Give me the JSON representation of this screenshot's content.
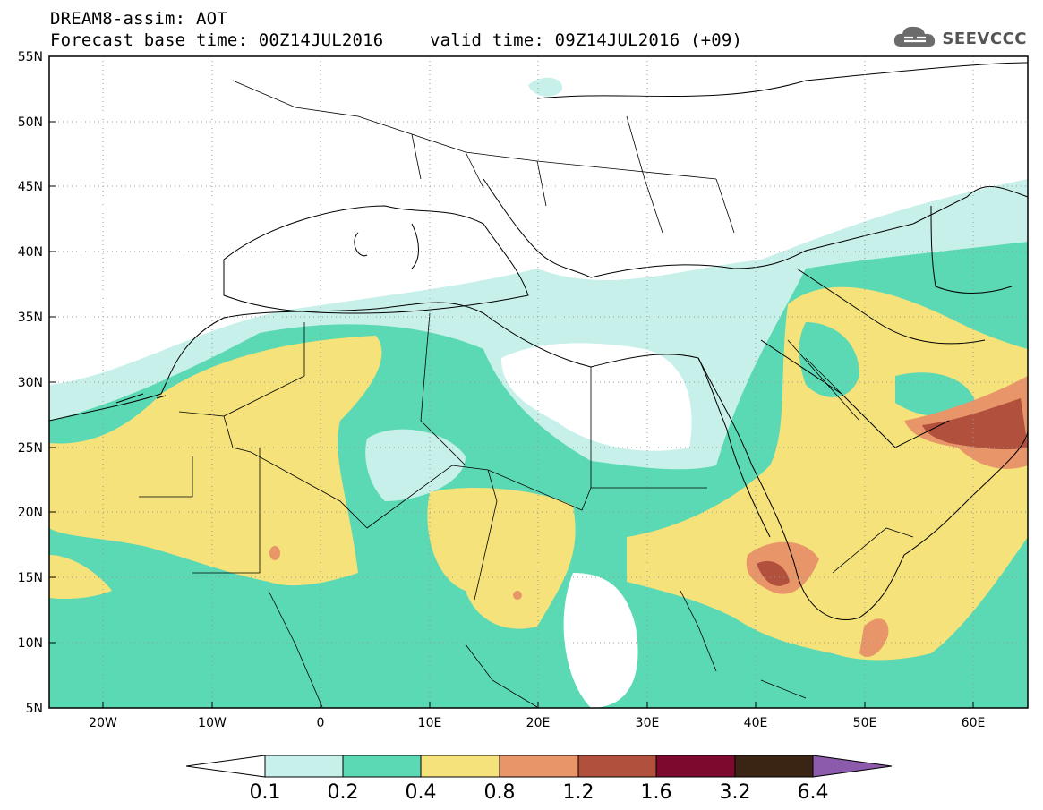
{
  "header": {
    "title": "DREAM8-assim: AOT",
    "base_time": "Forecast base time: 00Z14JUL2016",
    "valid_time": "valid time: 09Z14JUL2016 (+09)"
  },
  "logo": {
    "text": "SEEVCCC",
    "icon": "cloud-icon"
  },
  "map": {
    "lat_labels": [
      "55N",
      "50N",
      "45N",
      "40N",
      "35N",
      "30N",
      "25N",
      "20N",
      "15N",
      "10N",
      "5N"
    ],
    "lon_labels": [
      "20W",
      "10W",
      "0",
      "10E",
      "20E",
      "30E",
      "40E",
      "50E",
      "60E"
    ],
    "lat_range": [
      5,
      55
    ],
    "lon_range": [
      -25,
      65
    ],
    "gridlines": "dotted"
  },
  "colorbar": {
    "levels": [
      "0.1",
      "0.2",
      "0.4",
      "0.8",
      "1.2",
      "1.6",
      "3.2",
      "6.4"
    ],
    "colors": [
      "#ffffff",
      "#c8f0ea",
      "#5ad9b4",
      "#f5e27a",
      "#e8956a",
      "#b2503e",
      "#7d0a2e",
      "#3a2414",
      "#8c5bac"
    ]
  },
  "legend_colors": {
    "c1": "#c8f0ea",
    "c2": "#5ad9b4",
    "c3": "#f5e27a",
    "c4": "#e8956a",
    "c5": "#b2503e",
    "c6": "#7d0a2e",
    "c7": "#3a2414"
  }
}
